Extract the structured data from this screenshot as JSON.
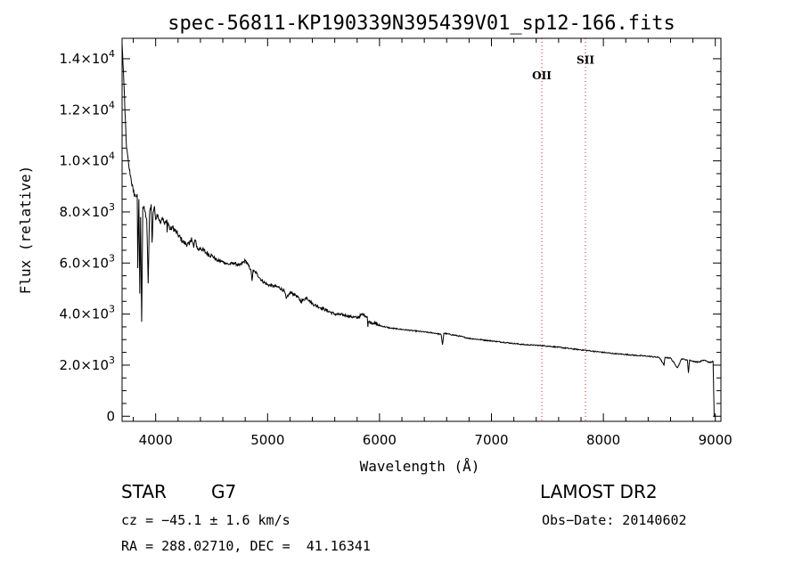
{
  "chart_data": {
    "type": "line",
    "title": "spec-56811-KP190339N395439V01_sp12-166.fits",
    "xlabel": "Wavelength (Å)",
    "ylabel": "Flux (relative)",
    "xlim": [
      3700,
      9050
    ],
    "ylim": [
      -200,
      14800
    ],
    "x_ticks": [
      4000,
      5000,
      6000,
      7000,
      8000,
      9000
    ],
    "y_ticks": [
      {
        "value": 0,
        "mantissa": "0",
        "exp": ""
      },
      {
        "value": 2000,
        "mantissa": "2.0×10",
        "exp": "3"
      },
      {
        "value": 4000,
        "mantissa": "4.0×10",
        "exp": "3"
      },
      {
        "value": 6000,
        "mantissa": "6.0×10",
        "exp": "3"
      },
      {
        "value": 8000,
        "mantissa": "8.0×10",
        "exp": "3"
      },
      {
        "value": 10000,
        "mantissa": "1.0×10",
        "exp": "4"
      },
      {
        "value": 12000,
        "mantissa": "1.2×10",
        "exp": "4"
      },
      {
        "value": 14000,
        "mantissa": "1.4×10",
        "exp": "4"
      }
    ],
    "lines": [
      {
        "label": "OII",
        "wavelength": 7450,
        "label_flux": 13200
      },
      {
        "label": "SII",
        "wavelength": 7840,
        "label_flux": 13800
      }
    ],
    "series": [
      {
        "x": [
          3700,
          3712,
          3725,
          3740,
          3760,
          3780,
          3800,
          3820,
          3835,
          3840,
          3850,
          3858,
          3865,
          3875,
          3885,
          3900,
          3920,
          3933,
          3945,
          3960,
          3968,
          3978,
          3990,
          4000,
          4020,
          4040,
          4060,
          4080,
          4100,
          4102,
          4110,
          4130,
          4150,
          4200,
          4250,
          4300,
          4320,
          4340,
          4350,
          4380,
          4400,
          4450,
          4500,
          4550,
          4600,
          4650,
          4700,
          4750,
          4800,
          4850,
          4861,
          4870,
          4900,
          4950,
          5000,
          5050,
          5100,
          5150,
          5167,
          5183,
          5200,
          5250,
          5300,
          5350,
          5400,
          5450,
          5500,
          5600,
          5700,
          5800,
          5850,
          5890,
          5896,
          5900,
          5950,
          6000,
          6100,
          6200,
          6300,
          6400,
          6500,
          6550,
          6563,
          6575,
          6700,
          6800,
          6900,
          7000,
          7100,
          7200,
          7300,
          7400,
          7500,
          7600,
          7700,
          7800,
          7900,
          8000,
          8100,
          8200,
          8300,
          8400,
          8500,
          8542,
          8550,
          8600,
          8662,
          8700,
          8750,
          8760,
          8770,
          8800,
          8850,
          8900,
          8950,
          8980,
          8990,
          9000
        ],
        "y": [
          14600,
          13500,
          12000,
          10500,
          9800,
          9300,
          8800,
          8600,
          8700,
          5800,
          8500,
          4800,
          7800,
          3700,
          8200,
          8100,
          7700,
          5200,
          7900,
          8300,
          6800,
          8000,
          8200,
          7700,
          7900,
          7600,
          7800,
          7500,
          7700,
          7200,
          7600,
          7300,
          7400,
          7100,
          6800,
          6700,
          7000,
          6600,
          6900,
          6500,
          6600,
          6400,
          6300,
          6100,
          6050,
          5950,
          6000,
          5900,
          6100,
          5750,
          5300,
          5700,
          5600,
          5300,
          5150,
          5100,
          5050,
          4900,
          4600,
          4700,
          4850,
          4750,
          4500,
          4650,
          4400,
          4300,
          4200,
          4000,
          3950,
          3850,
          4000,
          3900,
          3500,
          3700,
          3650,
          3550,
          3450,
          3400,
          3350,
          3300,
          3250,
          3200,
          2800,
          3250,
          3150,
          3050,
          3000,
          2950,
          2900,
          2850,
          2800,
          2780,
          2750,
          2700,
          2650,
          2600,
          2550,
          2500,
          2450,
          2420,
          2380,
          2350,
          2300,
          2000,
          2300,
          2280,
          1900,
          2250,
          2200,
          1700,
          2200,
          2150,
          2120,
          2200,
          2100,
          2150,
          0,
          0
        ]
      }
    ]
  },
  "info": {
    "class": "STAR",
    "subclass": "G7",
    "survey": "LAMOST DR2",
    "cz": "cz = −45.1 ± 1.6 km/s",
    "obs_date": "Obs−Date: 20140602",
    "coords": "RA = 288.02710, DEC =  41.16341"
  }
}
